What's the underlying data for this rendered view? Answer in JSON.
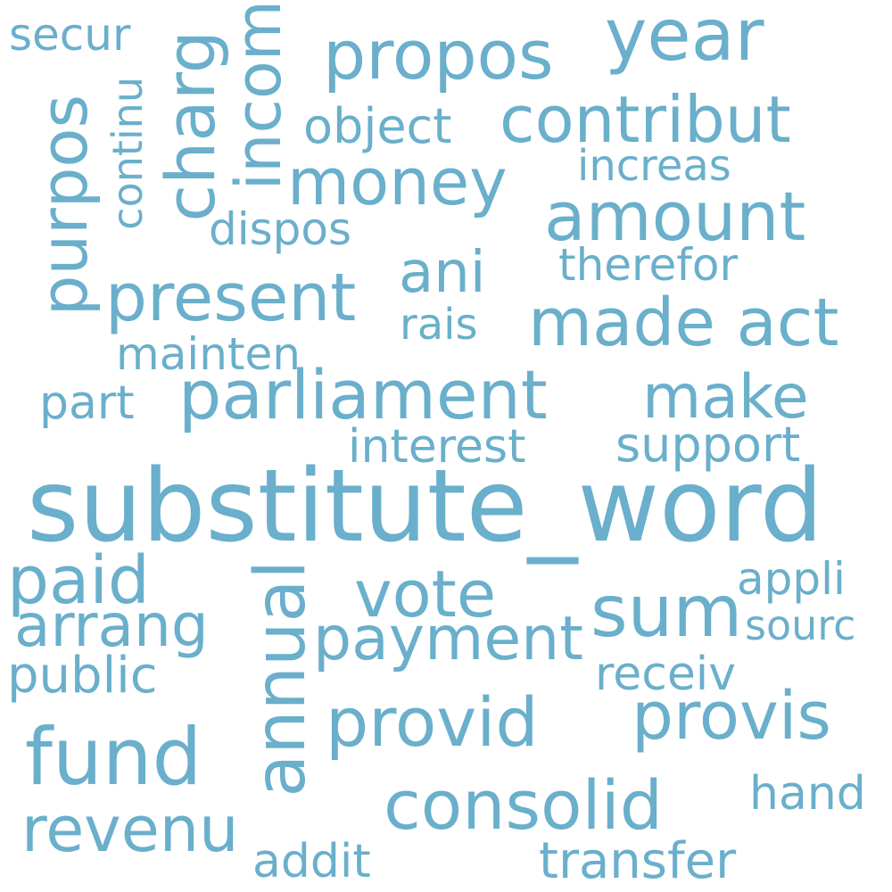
{
  "word_color": "#6aafcb",
  "background_color": "#ffffff",
  "words": {
    "substitute_word": "substitute_word",
    "parliament": "parliament",
    "fund": "fund",
    "consolid": "consolid",
    "provid": "provid",
    "provis": "provis",
    "propos": "propos",
    "year": "year",
    "contribut": "contribut",
    "money": "money",
    "amount": "amount",
    "present": "present",
    "made_act": "made act",
    "sum": "sum",
    "vote": "vote",
    "payment": "payment",
    "paid": "paid",
    "arrang": "arrang",
    "revenu": "revenu",
    "make": "make",
    "ani": "ani",
    "object": "object",
    "increas": "increas",
    "therefor": "therefor",
    "dispos": "dispos",
    "rais": "rais",
    "mainten": "mainten",
    "part": "part",
    "interest": "interest",
    "support": "support",
    "appli": "appli",
    "sourc": "sourc",
    "public": "public",
    "receiv": "receiv",
    "hand": "hand",
    "addit": "addit",
    "transfer": "transfer",
    "secur": "secur",
    "purpos": "purpos",
    "charg": "charg",
    "incom": "incom",
    "continu": "continu",
    "annual": "annual"
  }
}
